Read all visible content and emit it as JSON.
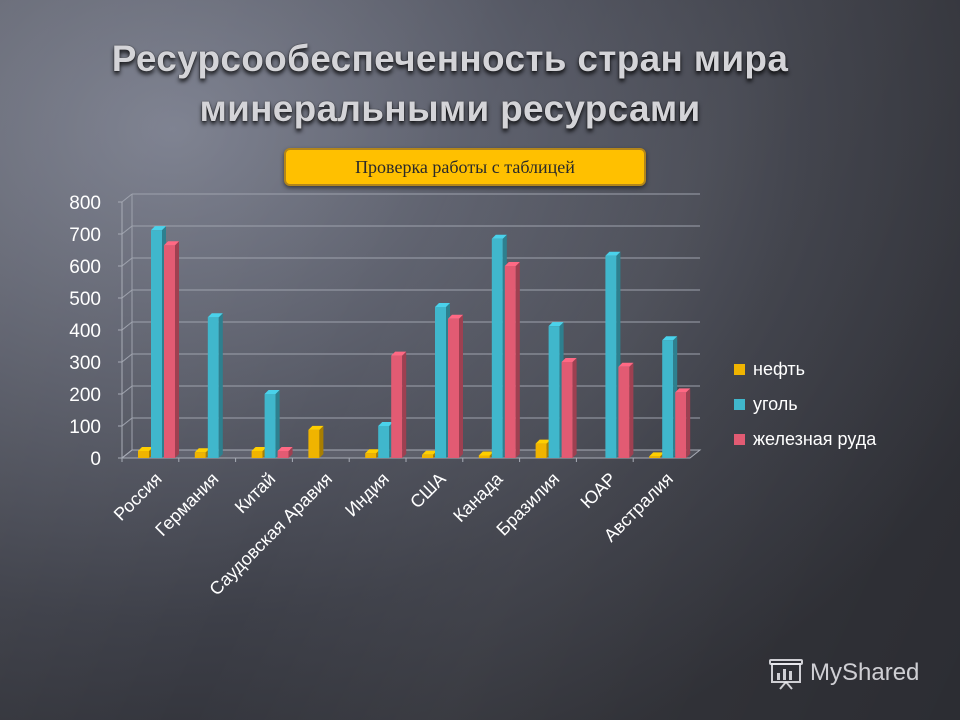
{
  "slide": {
    "title_line1": "Ресурсообеспеченность стран мира",
    "title_line2": "минеральными ресурсами",
    "button_label": "Проверка  работы с таблицей",
    "watermark": "MyShared",
    "watermark_icon": "presentation-board-icon"
  },
  "colors": {
    "oil": "#f0b400",
    "coal": "#40b7cc",
    "iron": "#e25b73",
    "badge": "#ffc000"
  },
  "chart_data": {
    "type": "bar",
    "style": "3d-clustered-column",
    "title": "",
    "xlabel": "",
    "ylabel": "",
    "ylim": [
      0,
      800
    ],
    "yticks": [
      0,
      100,
      200,
      300,
      400,
      500,
      600,
      700,
      800
    ],
    "grid": true,
    "legend_position": "right",
    "categories": [
      "Россия",
      "Германия",
      "Китай",
      "Саудовская Аравия",
      "Индия",
      "США",
      "Канада",
      "Бразилия",
      "ЮАР",
      "Австралия"
    ],
    "series": [
      {
        "name": "нефть",
        "color": "#f0b400",
        "values": [
          22,
          18,
          22,
          88,
          15,
          10,
          8,
          45,
          0,
          5
        ]
      },
      {
        "name": "уголь",
        "color": "#40b7cc",
        "values": [
          712,
          440,
          200,
          0,
          100,
          472,
          685,
          412,
          632,
          368
        ]
      },
      {
        "name": "железная руда",
        "color": "#e25b73",
        "values": [
          665,
          0,
          22,
          0,
          320,
          435,
          600,
          300,
          285,
          205
        ]
      }
    ]
  }
}
